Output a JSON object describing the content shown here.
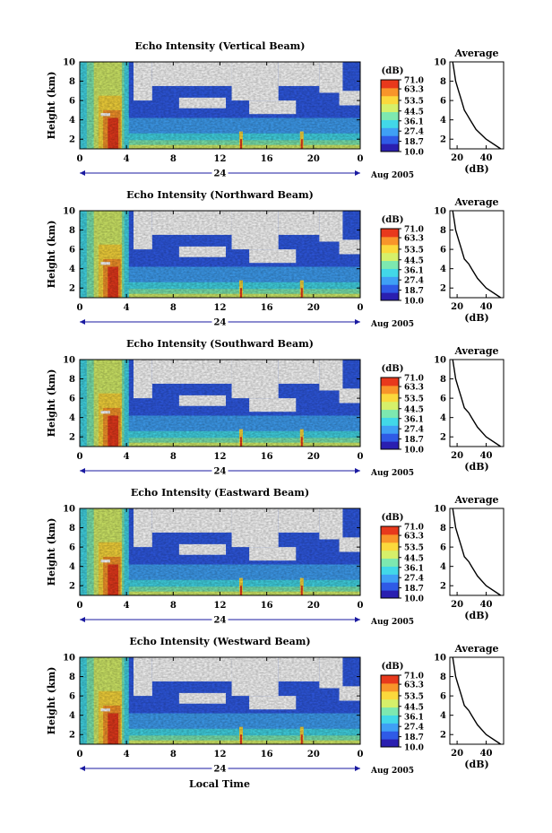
{
  "figure": {
    "xlabel": "Local Time",
    "date_month_year": "Aug 2005",
    "day_label": "24"
  },
  "colorbar": {
    "unit": "(dB)",
    "ticks": [
      "71.0",
      "63.3",
      "53.5",
      "44.5",
      "36.1",
      "27.4",
      "18.7",
      "10.0"
    ],
    "range": [
      10.0,
      71.0
    ],
    "colors": [
      "#2a1fb0",
      "#2f5ae6",
      "#3fa0f5",
      "#42d8e8",
      "#7de8b0",
      "#d6f06a",
      "#fbd93c",
      "#f8952a",
      "#e8391c"
    ]
  },
  "colors": {
    "no_data": "#ffffff",
    "axis": "#000000"
  },
  "chart_data": [
    {
      "type": "heatmap",
      "title": "Echo Intensity (Vertical Beam)",
      "ylabel": "Height (km)",
      "x_ticks": [
        "0",
        "4",
        "8",
        "12",
        "16",
        "20",
        "0"
      ],
      "y_ticks": [
        "2",
        "4",
        "6",
        "8",
        "10"
      ],
      "xlim": [
        0,
        24
      ],
      "ylim": [
        1,
        10
      ],
      "profile": {
        "title": "Average",
        "xlabel": "(dB)",
        "x_ticks": [
          "20",
          "40"
        ],
        "xlim": [
          15,
          52
        ],
        "y_ticks": [
          "2",
          "4",
          "6",
          "8",
          "10"
        ],
        "points": [
          [
            50,
            1
          ],
          [
            40,
            2
          ],
          [
            33,
            3
          ],
          [
            29,
            4
          ],
          [
            27,
            4.5
          ],
          [
            25,
            5
          ],
          [
            23,
            6
          ],
          [
            21,
            7
          ],
          [
            19,
            8
          ],
          [
            18,
            9
          ],
          [
            17,
            10
          ]
        ]
      }
    },
    {
      "type": "heatmap",
      "title": "Echo Intensity (Northward Beam)",
      "ylabel": "Height (km)",
      "x_ticks": [
        "0",
        "4",
        "8",
        "12",
        "16",
        "20",
        "0"
      ],
      "y_ticks": [
        "2",
        "4",
        "6",
        "8",
        "10"
      ],
      "xlim": [
        0,
        24
      ],
      "ylim": [
        1,
        10
      ],
      "profile": {
        "title": "Average",
        "xlabel": "(dB)",
        "x_ticks": [
          "20",
          "40"
        ],
        "xlim": [
          15,
          52
        ],
        "y_ticks": [
          "2",
          "4",
          "6",
          "8",
          "10"
        ],
        "points": [
          [
            50,
            1
          ],
          [
            40,
            2
          ],
          [
            34,
            3
          ],
          [
            30,
            4
          ],
          [
            28,
            4.5
          ],
          [
            25,
            5
          ],
          [
            23,
            6
          ],
          [
            21,
            7
          ],
          [
            19,
            8
          ],
          [
            18,
            9
          ],
          [
            17,
            10
          ]
        ]
      }
    },
    {
      "type": "heatmap",
      "title": "Echo Intensity (Southward Beam)",
      "ylabel": "Height (km)",
      "x_ticks": [
        "0",
        "4",
        "8",
        "12",
        "16",
        "20",
        "0"
      ],
      "y_ticks": [
        "2",
        "4",
        "6",
        "8",
        "10"
      ],
      "xlim": [
        0,
        24
      ],
      "ylim": [
        1,
        10
      ],
      "profile": {
        "title": "Average",
        "xlabel": "(dB)",
        "x_ticks": [
          "20",
          "40"
        ],
        "xlim": [
          15,
          52
        ],
        "y_ticks": [
          "2",
          "4",
          "6",
          "8",
          "10"
        ],
        "points": [
          [
            50,
            1
          ],
          [
            40,
            2
          ],
          [
            34,
            3
          ],
          [
            30,
            4
          ],
          [
            28,
            4.5
          ],
          [
            25,
            5
          ],
          [
            23,
            6
          ],
          [
            21,
            7
          ],
          [
            19,
            8
          ],
          [
            18,
            9
          ],
          [
            17,
            10
          ]
        ]
      }
    },
    {
      "type": "heatmap",
      "title": "Echo Intensity (Eastward Beam)",
      "ylabel": "Height (km)",
      "x_ticks": [
        "0",
        "4",
        "8",
        "12",
        "16",
        "20",
        "0"
      ],
      "y_ticks": [
        "2",
        "4",
        "6",
        "8",
        "10"
      ],
      "xlim": [
        0,
        24
      ],
      "ylim": [
        1,
        10
      ],
      "profile": {
        "title": "Average",
        "xlabel": "(dB)",
        "x_ticks": [
          "20",
          "40"
        ],
        "xlim": [
          15,
          52
        ],
        "y_ticks": [
          "2",
          "4",
          "6",
          "8",
          "10"
        ],
        "points": [
          [
            50,
            1
          ],
          [
            40,
            2
          ],
          [
            34,
            3
          ],
          [
            30,
            4
          ],
          [
            28,
            4.5
          ],
          [
            25,
            5
          ],
          [
            23,
            6
          ],
          [
            21,
            7
          ],
          [
            19,
            8
          ],
          [
            18,
            9
          ],
          [
            17,
            10
          ]
        ]
      }
    },
    {
      "type": "heatmap",
      "title": "Echo Intensity (Westward Beam)",
      "ylabel": "Height (km)",
      "x_ticks": [
        "0",
        "4",
        "8",
        "12",
        "16",
        "20",
        "0"
      ],
      "y_ticks": [
        "2",
        "4",
        "6",
        "8",
        "10"
      ],
      "xlim": [
        0,
        24
      ],
      "ylim": [
        1,
        10
      ],
      "profile": {
        "title": "Average",
        "xlabel": "(dB)",
        "x_ticks": [
          "20",
          "40"
        ],
        "xlim": [
          15,
          52
        ],
        "y_ticks": [
          "2",
          "4",
          "6",
          "8",
          "10"
        ],
        "points": [
          [
            50,
            1
          ],
          [
            40,
            2
          ],
          [
            34,
            3
          ],
          [
            30,
            4
          ],
          [
            28,
            4.5
          ],
          [
            25,
            5
          ],
          [
            23,
            6
          ],
          [
            21,
            7
          ],
          [
            19,
            8
          ],
          [
            18,
            9
          ],
          [
            17,
            10
          ]
        ]
      }
    }
  ]
}
